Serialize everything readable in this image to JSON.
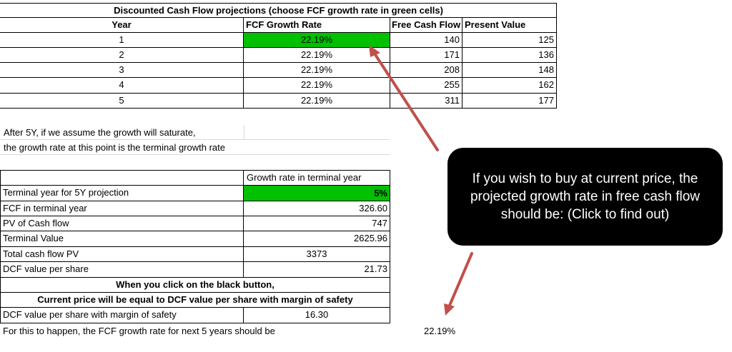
{
  "dcf_table": {
    "title": "Discounted Cash Flow projections (choose FCF growth rate in green cells)",
    "headers": [
      "Year",
      "FCF Growth Rate",
      "Free Cash Flow",
      "Present Value"
    ],
    "rows": [
      {
        "year": "1",
        "growth": "22.19%",
        "fcf": "140",
        "pv": "125"
      },
      {
        "year": "2",
        "growth": "22.19%",
        "fcf": "171",
        "pv": "136"
      },
      {
        "year": "3",
        "growth": "22.19%",
        "fcf": "208",
        "pv": "148"
      },
      {
        "year": "4",
        "growth": "22.19%",
        "fcf": "255",
        "pv": "162"
      },
      {
        "year": "5",
        "growth": "22.19%",
        "fcf": "311",
        "pv": "177"
      }
    ]
  },
  "note": {
    "line1": "After 5Y, if we assume the growth will saturate,",
    "line2": "the growth rate at this point is the terminal growth rate"
  },
  "terminal": {
    "header": "Growth rate in terminal year",
    "rows": [
      {
        "label": "Terminal year for 5Y projection",
        "value": "5%"
      },
      {
        "label": "FCF in terminal year",
        "value": "326.60"
      },
      {
        "label": "PV of Cash flow",
        "value": "747"
      },
      {
        "label": "Terminal Value",
        "value": "2625.96"
      },
      {
        "label": "Total cash flow PV",
        "value": "3373"
      },
      {
        "label": "DCF value per share",
        "value": "21.73"
      }
    ],
    "explain1": "When you click on the black button,",
    "explain2": "Current price will be equal to DCF value per share with margin of safety",
    "mos_label": "DCF value per share with margin of safety",
    "mos_value": "16.30",
    "final_label": "For this to happen, the FCF growth rate for next 5 years should be",
    "final_value": "22.19%"
  },
  "callout": {
    "text": "If you wish to buy at current price, the projected growth rate in free cash flow should be: (Click to find out)"
  },
  "colors": {
    "input_green": "#00c000",
    "arrow": "#c0504d",
    "callout_bg": "#000000"
  }
}
